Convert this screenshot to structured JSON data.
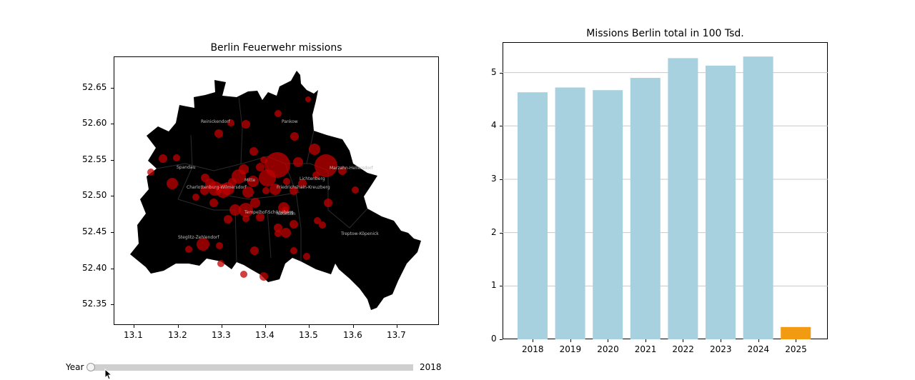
{
  "map_chart": {
    "title": "Berlin Feuerwehr missions",
    "x_ticks": [
      "13.1",
      "13.2",
      "13.3",
      "13.4",
      "13.5",
      "13.6",
      "13.7"
    ],
    "y_ticks": [
      "52.35",
      "52.40",
      "52.45",
      "52.50",
      "52.55",
      "52.60",
      "52.65"
    ],
    "districts": [
      "Reinickendorf",
      "Pankow",
      "Spandau",
      "Mitte",
      "Charlottenburg-Wilmersdorf",
      "Friedrichshain-Kreuzberg",
      "Lichtenberg",
      "Marzahn-Hellersdorf",
      "Tempelhof-Schöneberg",
      "Neukölln",
      "Steglitz-Zehlendorf",
      "Treptow-Köpenick"
    ],
    "colors": {
      "land": "#000000",
      "points": "#c00000"
    }
  },
  "chart_data": {
    "type": "bar",
    "title": "Missions Berlin total in 100 Tsd.",
    "categories": [
      "2018",
      "2019",
      "2020",
      "2021",
      "2022",
      "2023",
      "2024",
      "2025"
    ],
    "values": [
      4.63,
      4.72,
      4.67,
      4.9,
      5.27,
      5.13,
      5.3,
      0.23
    ],
    "y_ticks": [
      "0",
      "1",
      "2",
      "3",
      "4",
      "5"
    ],
    "ylim": [
      0,
      5.57
    ],
    "grid": "horizontal",
    "colors": {
      "bar": "#a8d1e0",
      "highlight": "#f29b12"
    },
    "highlight_index": 7
  },
  "slider": {
    "label": "Year",
    "value": "2018",
    "fraction": 0
  }
}
